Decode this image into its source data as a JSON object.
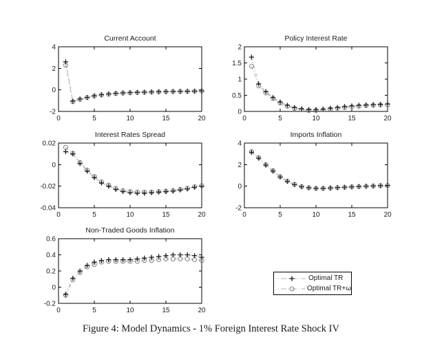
{
  "figure": {
    "caption": "Figure 4: Model Dynamics - 1% Foreign Interest Rate Shock IV"
  },
  "legend": {
    "entries": [
      {
        "label": "Optimal TR",
        "marker": "plus"
      },
      {
        "label": "Optimal TR+ω",
        "marker": "circle"
      }
    ]
  },
  "colors": {
    "background": "#ffffff",
    "axis": "#000000",
    "line": "#b0b0b0",
    "marker_plus": "#1a1a1a",
    "marker_circle": "#808080",
    "text": "#1a1a1a"
  },
  "chart_data": [
    {
      "type": "line",
      "title": "Current Account",
      "x": [
        1,
        2,
        3,
        4,
        5,
        6,
        7,
        8,
        9,
        10,
        11,
        12,
        13,
        14,
        15,
        16,
        17,
        18,
        19,
        20
      ],
      "xlim": [
        0,
        20
      ],
      "ylim": [
        -2,
        4
      ],
      "xticks": [
        0,
        5,
        10,
        15,
        20
      ],
      "xtick_labels": [
        "0",
        "5",
        "10",
        "15",
        "20"
      ],
      "yticks": [
        -2,
        0,
        2,
        4
      ],
      "ytick_labels": [
        "-2",
        "0",
        "2",
        "4"
      ],
      "series": [
        {
          "name": "Optimal TR",
          "marker": "plus",
          "values": [
            2.6,
            -1.05,
            -0.85,
            -0.7,
            -0.55,
            -0.45,
            -0.38,
            -0.32,
            -0.28,
            -0.25,
            -0.23,
            -0.21,
            -0.19,
            -0.17,
            -0.16,
            -0.15,
            -0.14,
            -0.13,
            -0.12,
            -0.1
          ]
        },
        {
          "name": "Optimal TR+ω",
          "marker": "circle",
          "values": [
            2.3,
            -1.1,
            -0.88,
            -0.72,
            -0.57,
            -0.47,
            -0.4,
            -0.34,
            -0.3,
            -0.27,
            -0.25,
            -0.23,
            -0.21,
            -0.19,
            -0.17,
            -0.16,
            -0.15,
            -0.14,
            -0.13,
            -0.11
          ]
        }
      ]
    },
    {
      "type": "line",
      "title": "Policy Interest Rate",
      "x": [
        1,
        2,
        3,
        4,
        5,
        6,
        7,
        8,
        9,
        10,
        11,
        12,
        13,
        14,
        15,
        16,
        17,
        18,
        19,
        20
      ],
      "xlim": [
        0,
        20
      ],
      "ylim": [
        0,
        2
      ],
      "xticks": [
        0,
        5,
        10,
        15,
        20
      ],
      "xtick_labels": [
        "0",
        "5",
        "10",
        "15",
        "20"
      ],
      "yticks": [
        0,
        0.5,
        1,
        1.5,
        2
      ],
      "ytick_labels": [
        "0",
        "0.5",
        "1",
        "1.5",
        "2"
      ],
      "series": [
        {
          "name": "Optimal TR",
          "marker": "plus",
          "values": [
            1.68,
            0.85,
            0.61,
            0.43,
            0.29,
            0.19,
            0.12,
            0.08,
            0.06,
            0.06,
            0.07,
            0.1,
            0.12,
            0.15,
            0.17,
            0.19,
            0.2,
            0.21,
            0.22,
            0.23
          ]
        },
        {
          "name": "Optimal TR+ω",
          "marker": "circle",
          "values": [
            1.4,
            0.79,
            0.57,
            0.4,
            0.26,
            0.16,
            0.09,
            0.05,
            0.03,
            0.03,
            0.05,
            0.07,
            0.1,
            0.12,
            0.14,
            0.16,
            0.18,
            0.19,
            0.2,
            0.2
          ]
        }
      ]
    },
    {
      "type": "line",
      "title": "Interest Rates Spread",
      "x": [
        1,
        2,
        3,
        4,
        5,
        6,
        7,
        8,
        9,
        10,
        11,
        12,
        13,
        14,
        15,
        16,
        17,
        18,
        19,
        20
      ],
      "xlim": [
        0,
        20
      ],
      "ylim": [
        -0.04,
        0.02
      ],
      "xticks": [
        0,
        5,
        10,
        15,
        20
      ],
      "xtick_labels": [
        "0",
        "5",
        "10",
        "15",
        "20"
      ],
      "yticks": [
        -0.04,
        -0.02,
        0,
        0.02
      ],
      "ytick_labels": [
        "-0.04",
        "-0.02",
        "0",
        "0.02"
      ],
      "series": [
        {
          "name": "Optimal TR",
          "marker": "plus",
          "values": [
            0.012,
            0.01,
            0.001,
            -0.006,
            -0.012,
            -0.017,
            -0.02,
            -0.023,
            -0.025,
            -0.026,
            -0.0265,
            -0.0265,
            -0.026,
            -0.0255,
            -0.025,
            -0.0245,
            -0.0235,
            -0.0225,
            -0.021,
            -0.02
          ]
        },
        {
          "name": "Optimal TR+ω",
          "marker": "circle",
          "values": [
            0.016,
            0.0105,
            0.002,
            -0.005,
            -0.011,
            -0.016,
            -0.019,
            -0.022,
            -0.024,
            -0.025,
            -0.0255,
            -0.0255,
            -0.0255,
            -0.025,
            -0.0245,
            -0.024,
            -0.023,
            -0.022,
            -0.0205,
            -0.0195
          ]
        }
      ]
    },
    {
      "type": "line",
      "title": "Imports Inflation",
      "x": [
        1,
        2,
        3,
        4,
        5,
        6,
        7,
        8,
        9,
        10,
        11,
        12,
        13,
        14,
        15,
        16,
        17,
        18,
        19,
        20
      ],
      "xlim": [
        0,
        20
      ],
      "ylim": [
        -2,
        4
      ],
      "xticks": [
        0,
        5,
        10,
        15,
        20
      ],
      "xtick_labels": [
        "0",
        "5",
        "10",
        "15",
        "20"
      ],
      "yticks": [
        -2,
        0,
        2,
        4
      ],
      "ytick_labels": [
        "-2",
        "0",
        "2",
        "4"
      ],
      "series": [
        {
          "name": "Optimal TR",
          "marker": "plus",
          "values": [
            3.15,
            2.6,
            1.95,
            1.4,
            0.85,
            0.45,
            0.15,
            -0.05,
            -0.15,
            -0.2,
            -0.2,
            -0.17,
            -0.13,
            -0.1,
            -0.06,
            -0.03,
            0,
            0.02,
            0.05,
            0.07
          ]
        },
        {
          "name": "Optimal TR+ω",
          "marker": "circle",
          "values": [
            3.2,
            2.65,
            2,
            1.43,
            0.88,
            0.47,
            0.17,
            -0.04,
            -0.15,
            -0.21,
            -0.21,
            -0.18,
            -0.14,
            -0.11,
            -0.07,
            -0.04,
            -0.01,
            0.01,
            0.04,
            0.06
          ]
        }
      ]
    },
    {
      "type": "line",
      "title": "Non-Traded Goods Inflation",
      "x": [
        1,
        2,
        3,
        4,
        5,
        6,
        7,
        8,
        9,
        10,
        11,
        12,
        13,
        14,
        15,
        16,
        17,
        18,
        19,
        20
      ],
      "xlim": [
        0,
        20
      ],
      "ylim": [
        -0.2,
        0.6
      ],
      "xticks": [
        0,
        5,
        10,
        15,
        20
      ],
      "xtick_labels": [
        "0",
        "5",
        "10",
        "15",
        "20"
      ],
      "yticks": [
        -0.2,
        0,
        0.2,
        0.4,
        0.6
      ],
      "ytick_labels": [
        "-0.2",
        "0",
        "0.2",
        "0.4",
        "0.6"
      ],
      "series": [
        {
          "name": "Optimal TR",
          "marker": "plus",
          "values": [
            -0.09,
            0.11,
            0.2,
            0.27,
            0.31,
            0.33,
            0.34,
            0.34,
            0.34,
            0.34,
            0.35,
            0.36,
            0.37,
            0.38,
            0.39,
            0.4,
            0.4,
            0.4,
            0.39,
            0.37
          ]
        },
        {
          "name": "Optimal TR+ω",
          "marker": "circle",
          "values": [
            -0.1,
            0.09,
            0.18,
            0.25,
            0.28,
            0.31,
            0.32,
            0.32,
            0.32,
            0.32,
            0.32,
            0.33,
            0.33,
            0.34,
            0.35,
            0.35,
            0.35,
            0.35,
            0.34,
            0.33
          ]
        }
      ]
    }
  ]
}
